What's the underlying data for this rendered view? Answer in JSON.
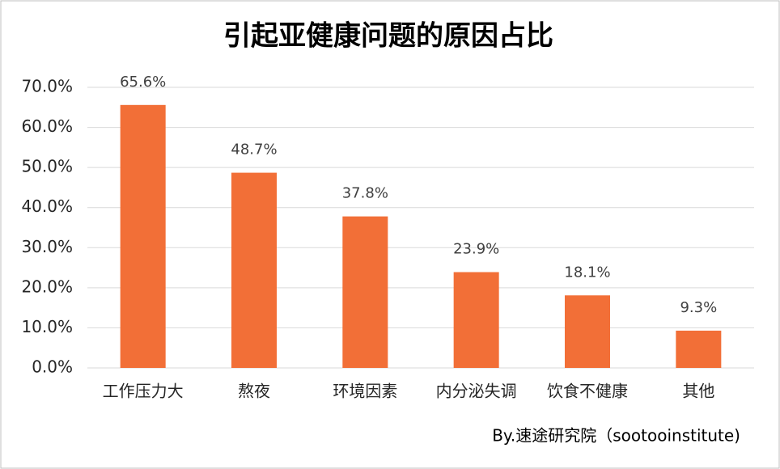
{
  "chart_data": {
    "type": "bar",
    "title": "引起亚健康问题的原因占比",
    "categories": [
      "工作压力大",
      "熬夜",
      "环境因素",
      "内分泌失调",
      "饮食不健康",
      "其他"
    ],
    "values": [
      65.6,
      48.7,
      37.8,
      23.9,
      18.1,
      9.3
    ],
    "value_labels": [
      "65.6%",
      "48.7%",
      "37.8%",
      "23.9%",
      "18.1%",
      "9.3%"
    ],
    "color": "#f26f37",
    "ylim": [
      0,
      70
    ],
    "yticks": [
      {
        "value": 0,
        "label": "0.0%"
      },
      {
        "value": 10,
        "label": "10.0%"
      },
      {
        "value": 20,
        "label": "20.0%"
      },
      {
        "value": 30,
        "label": "30.0%"
      },
      {
        "value": 40,
        "label": "40.0%"
      },
      {
        "value": 50,
        "label": "50.0%"
      },
      {
        "value": 60,
        "label": "60.0%"
      },
      {
        "value": 70,
        "label": "70.0%"
      }
    ],
    "grid": true,
    "source": "By.速途研究院（sootooinstitute)"
  }
}
